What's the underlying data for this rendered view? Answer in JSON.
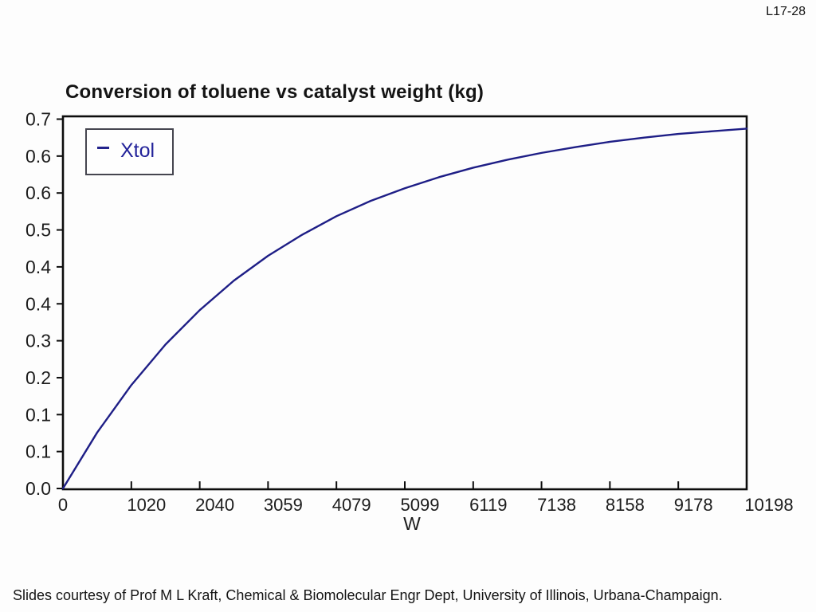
{
  "meta": {
    "page_code": "L17-28"
  },
  "footer": {
    "caption": "Slides courtesy of Prof M L Kraft, Chemical & Biomolecular Engr Dept, University of Illinois, Urbana-Champaign."
  },
  "chart_data": {
    "type": "line",
    "title": "Conversion of toluene vs catalyst weight (kg)",
    "xlabel": "W",
    "ylabel": "",
    "xlim": [
      0,
      10198
    ],
    "ylim": [
      0,
      0.7
    ],
    "grid": false,
    "frame": true,
    "legend_position": "top-left-inside",
    "x_tick_labels": [
      "0",
      "1020",
      "2040",
      "3059",
      "4079",
      "5099",
      "6119",
      "7138",
      "8158",
      "9178",
      "10198"
    ],
    "x_tick_values": [
      0,
      1020,
      2040,
      3059,
      4079,
      5099,
      6119,
      7138,
      8158,
      9178,
      10198
    ],
    "y_tick_labels": [
      "0.7",
      "0.6",
      "0.6",
      "0.5",
      "0.4",
      "0.4",
      "0.3",
      "0.2",
      "0.1",
      "0.1",
      "0.0"
    ],
    "y_tick_values": [
      0.7,
      0.63,
      0.56,
      0.49,
      0.42,
      0.35,
      0.28,
      0.21,
      0.14,
      0.07,
      0.0
    ],
    "legend": {
      "label": "Xtol",
      "marker": "dash"
    },
    "series": [
      {
        "name": "Xtol",
        "color": "#1e1e86",
        "points": [
          [
            0,
            0.0
          ],
          [
            510,
            0.106
          ],
          [
            1020,
            0.196
          ],
          [
            1530,
            0.273
          ],
          [
            2040,
            0.338
          ],
          [
            2550,
            0.394
          ],
          [
            3059,
            0.441
          ],
          [
            3569,
            0.481
          ],
          [
            4079,
            0.516
          ],
          [
            4589,
            0.545
          ],
          [
            5099,
            0.569
          ],
          [
            5609,
            0.59
          ],
          [
            6119,
            0.608
          ],
          [
            6629,
            0.623
          ],
          [
            7138,
            0.636
          ],
          [
            7648,
            0.647
          ],
          [
            8158,
            0.657
          ],
          [
            8668,
            0.665
          ],
          [
            9178,
            0.672
          ],
          [
            9688,
            0.677
          ],
          [
            10198,
            0.682
          ]
        ]
      }
    ]
  },
  "colors": {
    "background": "#fdfdfd",
    "frame": "#0d0d0d",
    "curve": "#1e1e86",
    "tick_text": "#1c1c1c",
    "legend_text": "#23239a",
    "title_text": "#141414"
  }
}
